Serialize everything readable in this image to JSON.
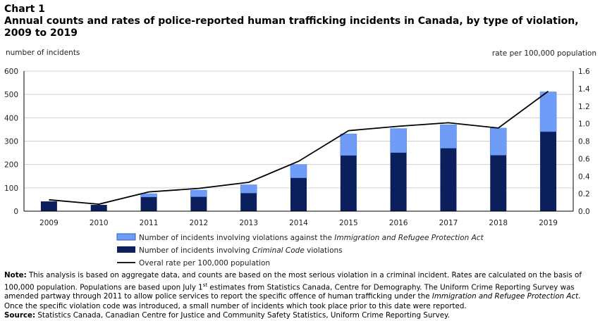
{
  "heading": {
    "number": "Chart 1",
    "title": "Annual counts and rates of police-reported human trafficking incidents in Canada, by type of violation, 2009 to 2019"
  },
  "colors": {
    "criminal_code": "#0b1f5c",
    "irpa": "#6f9cf6",
    "rate_line": "#000000",
    "grid": "#d0d0d0"
  },
  "chart_data": {
    "type": "bar",
    "stacked": true,
    "categories": [
      "2009",
      "2010",
      "2011",
      "2012",
      "2013",
      "2014",
      "2015",
      "2016",
      "2017",
      "2018",
      "2019"
    ],
    "series": [
      {
        "name": "Number of incidents involving Criminal Code violations",
        "axis": "left",
        "values": [
          42,
          27,
          61,
          62,
          78,
          143,
          239,
          251,
          270,
          240,
          341
        ]
      },
      {
        "name": "Number of incidents involving violations against the Immigration and Refugee Protection Act",
        "axis": "left",
        "values": [
          0,
          0,
          14,
          28,
          35,
          57,
          92,
          103,
          100,
          116,
          170
        ]
      },
      {
        "name": "Overal rate per 100,000 population",
        "type": "line",
        "axis": "right",
        "values": [
          0.13,
          0.08,
          0.22,
          0.26,
          0.33,
          0.57,
          0.92,
          0.97,
          1.01,
          0.95,
          1.37
        ]
      }
    ],
    "ylabel_left": "number of incidents",
    "ylabel_right": "rate per 100,000 population",
    "ylim_left": [
      0,
      600
    ],
    "yticks_left": [
      "0",
      "100",
      "200",
      "300",
      "400",
      "500",
      "600"
    ],
    "ylim_right": [
      0,
      1.6
    ],
    "yticks_right": [
      "0.0",
      "0.2",
      "0.4",
      "0.6",
      "0.8",
      "1.0",
      "1.2",
      "1.4",
      "1.6"
    ],
    "grid": true,
    "legend_position": "bottom"
  },
  "legend": {
    "irpa_prefix": "Number of incidents involving violations against the ",
    "irpa_italic": "Immigration and Refugee Protection Act",
    "cc_prefix": "Number of incidents involving ",
    "cc_italic": "Criminal Code",
    "cc_suffix": " violations",
    "rate": "Overal rate per 100,000 population"
  },
  "note": {
    "note_label": "Note:",
    "note_text_1": " This analysis is based on aggregate data, and counts are based on the most serious violation in a criminal incident. Rates are calculated on the basis of 100,000 population. Populations are based upon July 1",
    "note_sup": "st",
    "note_text_2": " estimates from Statistics Canada, Centre for Demography. The Uniform Crime Reporting Survey was amended partway through 2011 to allow police services to report the specific offence of human trafficking under the ",
    "note_italic": "Immigration and Refugee Protection Act",
    "note_text_3": ". Once the specific violation code was introduced, a small number of incidents which took place prior to this date were reported.",
    "source_label": "Source:",
    "source_text": " Statistics Canada, Canadian Centre for Justice and Community Safety Statistics, Uniform Crime Reporting Survey."
  }
}
